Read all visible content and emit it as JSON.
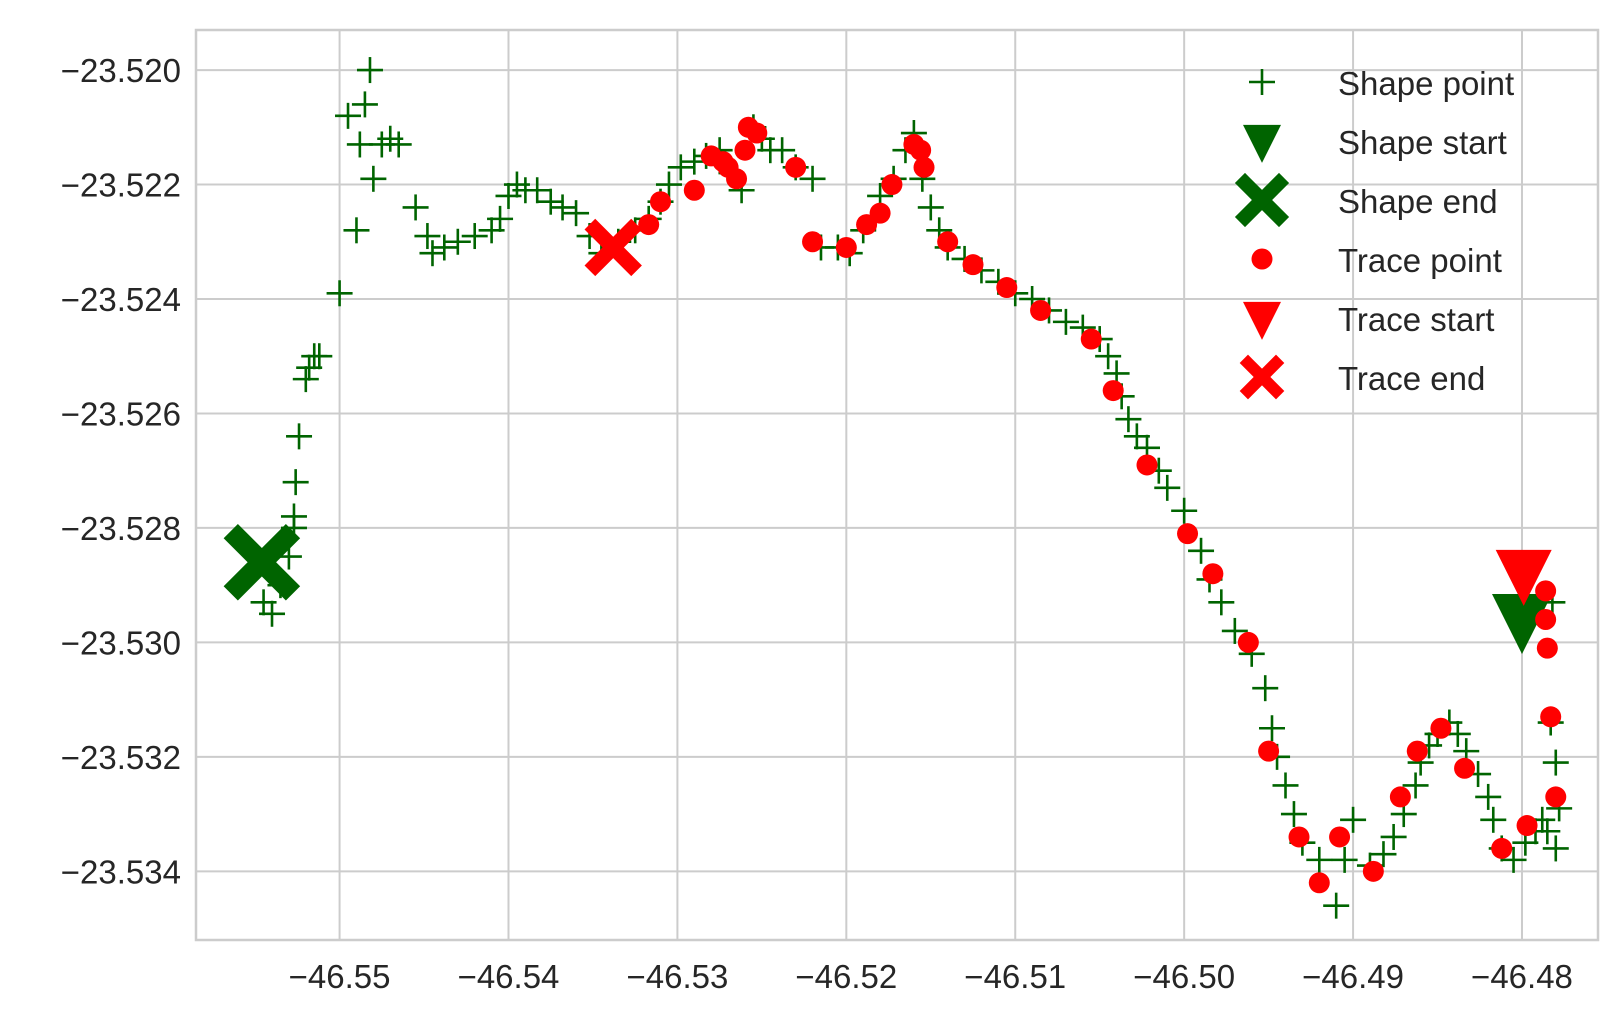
{
  "chart_data": {
    "type": "scatter",
    "title": "",
    "xlabel": "",
    "ylabel": "",
    "xlim": [
      -46.5585,
      -46.4755
    ],
    "ylim": [
      -23.5352,
      -23.5193
    ],
    "grid": true,
    "legend_position": "top-right",
    "x_ticks": [
      {
        "value": -46.55,
        "label": "−46.55"
      },
      {
        "value": -46.54,
        "label": "−46.54"
      },
      {
        "value": -46.53,
        "label": "−46.53"
      },
      {
        "value": -46.52,
        "label": "−46.52"
      },
      {
        "value": -46.51,
        "label": "−46.51"
      },
      {
        "value": -46.5,
        "label": "−46.50"
      },
      {
        "value": -46.49,
        "label": "−46.49"
      },
      {
        "value": -46.48,
        "label": "−46.48"
      }
    ],
    "y_ticks": [
      {
        "value": -23.52,
        "label": "−23.520"
      },
      {
        "value": -23.522,
        "label": "−23.522"
      },
      {
        "value": -23.524,
        "label": "−23.524"
      },
      {
        "value": -23.526,
        "label": "−23.526"
      },
      {
        "value": -23.528,
        "label": "−23.528"
      },
      {
        "value": -23.53,
        "label": "−23.530"
      },
      {
        "value": -23.532,
        "label": "−23.532"
      },
      {
        "value": -23.534,
        "label": "−23.534"
      }
    ],
    "colors": {
      "shape": "#006400",
      "trace": "#ff0000",
      "grid": "#cccccc",
      "text": "#262626"
    },
    "series": [
      {
        "name": "Shape point",
        "marker": "plus",
        "color": "#006400",
        "points": [
          [
            -46.5545,
            -23.5293
          ],
          [
            -46.554,
            -23.5295
          ],
          [
            -46.5535,
            -23.529
          ],
          [
            -46.553,
            -23.5285
          ],
          [
            -46.5527,
            -23.528
          ],
          [
            -46.5527,
            -23.5278
          ],
          [
            -46.5526,
            -23.5272
          ],
          [
            -46.5524,
            -23.5264
          ],
          [
            -46.552,
            -23.5254
          ],
          [
            -46.5518,
            -23.5252
          ],
          [
            -46.5515,
            -23.525
          ],
          [
            -46.5512,
            -23.525
          ],
          [
            -46.55,
            -23.5239
          ],
          [
            -46.549,
            -23.5228
          ],
          [
            -46.5495,
            -23.5208
          ],
          [
            -46.5488,
            -23.5213
          ],
          [
            -46.548,
            -23.5219
          ],
          [
            -46.5485,
            -23.5206
          ],
          [
            -46.5482,
            -23.52
          ],
          [
            -46.5475,
            -23.5213
          ],
          [
            -46.547,
            -23.5212
          ],
          [
            -46.5465,
            -23.5213
          ],
          [
            -46.5455,
            -23.5224
          ],
          [
            -46.5448,
            -23.5229
          ],
          [
            -46.5445,
            -23.5232
          ],
          [
            -46.5438,
            -23.5231
          ],
          [
            -46.543,
            -23.523
          ],
          [
            -46.542,
            -23.5229
          ],
          [
            -46.541,
            -23.5228
          ],
          [
            -46.5405,
            -23.5226
          ],
          [
            -46.54,
            -23.5222
          ],
          [
            -46.5395,
            -23.522
          ],
          [
            -46.539,
            -23.5221
          ],
          [
            -46.5383,
            -23.5221
          ],
          [
            -46.5375,
            -23.5223
          ],
          [
            -46.5368,
            -23.5224
          ],
          [
            -46.536,
            -23.5225
          ],
          [
            -46.5352,
            -23.5229
          ],
          [
            -46.5345,
            -23.5232
          ],
          [
            -46.5335,
            -23.523
          ],
          [
            -46.5325,
            -23.5228
          ],
          [
            -46.5317,
            -23.5226
          ],
          [
            -46.531,
            -23.5223
          ],
          [
            -46.5305,
            -23.522
          ],
          [
            -46.5298,
            -23.5217
          ],
          [
            -46.529,
            -23.5216
          ],
          [
            -46.5283,
            -23.5215
          ],
          [
            -46.5275,
            -23.5214
          ],
          [
            -46.5268,
            -23.5218
          ],
          [
            -46.5262,
            -23.5221
          ],
          [
            -46.5255,
            -23.521
          ],
          [
            -46.525,
            -23.5212
          ],
          [
            -46.5245,
            -23.5214
          ],
          [
            -46.5238,
            -23.5214
          ],
          [
            -46.523,
            -23.5217
          ],
          [
            -46.522,
            -23.5219
          ],
          [
            -46.5215,
            -23.5231
          ],
          [
            -46.5205,
            -23.5231
          ],
          [
            -46.5198,
            -23.5232
          ],
          [
            -46.519,
            -23.5228
          ],
          [
            -46.518,
            -23.5222
          ],
          [
            -46.5172,
            -23.5219
          ],
          [
            -46.5165,
            -23.5214
          ],
          [
            -46.516,
            -23.5211
          ],
          [
            -46.5155,
            -23.5219
          ],
          [
            -46.515,
            -23.5224
          ],
          [
            -46.5145,
            -23.5228
          ],
          [
            -46.514,
            -23.5231
          ],
          [
            -46.513,
            -23.5233
          ],
          [
            -46.512,
            -23.5235
          ],
          [
            -46.511,
            -23.5237
          ],
          [
            -46.51,
            -23.5239
          ],
          [
            -46.509,
            -23.524
          ],
          [
            -46.508,
            -23.5242
          ],
          [
            -46.507,
            -23.5244
          ],
          [
            -46.506,
            -23.5245
          ],
          [
            -46.505,
            -23.5247
          ],
          [
            -46.5045,
            -23.525
          ],
          [
            -46.504,
            -23.5253
          ],
          [
            -46.5037,
            -23.5257
          ],
          [
            -46.5033,
            -23.5261
          ],
          [
            -46.5028,
            -23.5264
          ],
          [
            -46.5022,
            -23.5266
          ],
          [
            -46.5015,
            -23.527
          ],
          [
            -46.501,
            -23.5273
          ],
          [
            -46.5,
            -23.5277
          ],
          [
            -46.499,
            -23.5284
          ],
          [
            -46.4985,
            -23.5289
          ],
          [
            -46.4978,
            -23.5293
          ],
          [
            -46.497,
            -23.5298
          ],
          [
            -46.496,
            -23.5302
          ],
          [
            -46.4952,
            -23.5308
          ],
          [
            -46.4948,
            -23.5315
          ],
          [
            -46.4945,
            -23.532
          ],
          [
            -46.494,
            -23.5325
          ],
          [
            -46.4935,
            -23.533
          ],
          [
            -46.493,
            -23.5335
          ],
          [
            -46.492,
            -23.5338
          ],
          [
            -46.491,
            -23.5346
          ],
          [
            -46.4905,
            -23.5338
          ],
          [
            -46.49,
            -23.5331
          ],
          [
            -46.489,
            -23.5339
          ],
          [
            -46.4882,
            -23.5337
          ],
          [
            -46.4876,
            -23.5334
          ],
          [
            -46.487,
            -23.533
          ],
          [
            -46.4863,
            -23.5325
          ],
          [
            -46.486,
            -23.5321
          ],
          [
            -46.4855,
            -23.5318
          ],
          [
            -46.485,
            -23.5316
          ],
          [
            -46.4843,
            -23.5314
          ],
          [
            -46.4838,
            -23.5316
          ],
          [
            -46.4833,
            -23.5319
          ],
          [
            -46.4826,
            -23.5323
          ],
          [
            -46.482,
            -23.5327
          ],
          [
            -46.4817,
            -23.5331
          ],
          [
            -46.4812,
            -23.5336
          ],
          [
            -46.4805,
            -23.5338
          ],
          [
            -46.4798,
            -23.5335
          ],
          [
            -46.4792,
            -23.5333
          ],
          [
            -46.4788,
            -23.5331
          ],
          [
            -46.4785,
            -23.5333
          ],
          [
            -46.478,
            -23.5336
          ],
          [
            -46.4778,
            -23.5329
          ],
          [
            -46.478,
            -23.5321
          ],
          [
            -46.4783,
            -23.5314
          ],
          [
            -46.4782,
            -23.5293
          ]
        ]
      },
      {
        "name": "Shape start",
        "marker": "triangle-down",
        "color": "#006400",
        "points": [
          [
            -46.48,
            -23.5296
          ]
        ]
      },
      {
        "name": "Shape end",
        "marker": "x-filled",
        "color": "#006400",
        "points": [
          [
            -46.5546,
            -23.5286
          ]
        ]
      },
      {
        "name": "Trace point",
        "marker": "circle",
        "color": "#ff0000",
        "points": [
          [
            -46.529,
            -23.5221
          ],
          [
            -46.531,
            -23.5223
          ],
          [
            -46.5317,
            -23.5227
          ],
          [
            -46.528,
            -23.5215
          ],
          [
            -46.5273,
            -23.5216
          ],
          [
            -46.526,
            -23.5214
          ],
          [
            -46.5265,
            -23.5219
          ],
          [
            -46.527,
            -23.5217
          ],
          [
            -46.5258,
            -23.521
          ],
          [
            -46.5253,
            -23.5211
          ],
          [
            -46.523,
            -23.5217
          ],
          [
            -46.522,
            -23.523
          ],
          [
            -46.52,
            -23.5231
          ],
          [
            -46.5188,
            -23.5227
          ],
          [
            -46.518,
            -23.5225
          ],
          [
            -46.5173,
            -23.522
          ],
          [
            -46.516,
            -23.5213
          ],
          [
            -46.5156,
            -23.5214
          ],
          [
            -46.5154,
            -23.5217
          ],
          [
            -46.514,
            -23.523
          ],
          [
            -46.5125,
            -23.5234
          ],
          [
            -46.5105,
            -23.5238
          ],
          [
            -46.5085,
            -23.5242
          ],
          [
            -46.5055,
            -23.5247
          ],
          [
            -46.5042,
            -23.5256
          ],
          [
            -46.5022,
            -23.5269
          ],
          [
            -46.4998,
            -23.5281
          ],
          [
            -46.4983,
            -23.5288
          ],
          [
            -46.4962,
            -23.53
          ],
          [
            -46.495,
            -23.5319
          ],
          [
            -46.4932,
            -23.5334
          ],
          [
            -46.492,
            -23.5342
          ],
          [
            -46.4908,
            -23.5334
          ],
          [
            -46.4888,
            -23.534
          ],
          [
            -46.4872,
            -23.5327
          ],
          [
            -46.4862,
            -23.5319
          ],
          [
            -46.4848,
            -23.5315
          ],
          [
            -46.4834,
            -23.5322
          ],
          [
            -46.4812,
            -23.5336
          ],
          [
            -46.4797,
            -23.5332
          ],
          [
            -46.478,
            -23.5327
          ],
          [
            -46.4783,
            -23.5313
          ],
          [
            -46.4785,
            -23.5301
          ],
          [
            -46.4786,
            -23.5296
          ],
          [
            -46.4786,
            -23.5291
          ]
        ]
      },
      {
        "name": "Trace start",
        "marker": "triangle-down",
        "color": "#ff0000",
        "points": [
          [
            -46.4799,
            -23.5288
          ]
        ]
      },
      {
        "name": "Trace end",
        "marker": "x-filled",
        "color": "#ff0000",
        "points": [
          [
            -46.5338,
            -23.5231
          ]
        ]
      }
    ]
  }
}
